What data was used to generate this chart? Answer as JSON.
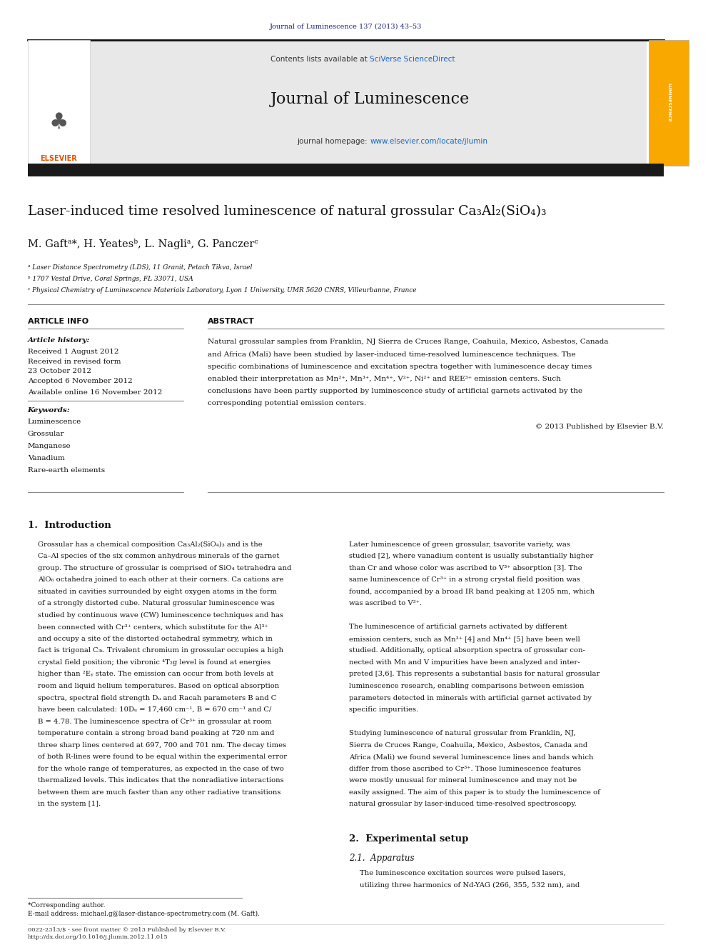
{
  "page_width": 9.92,
  "page_height": 13.23,
  "dpi": 100,
  "background_color": "#ffffff",
  "top_journal_text": "Journal of Luminescence 137 (2013) 43–53",
  "top_journal_color": "#1a237e",
  "header_bg_color": "#e8e8e8",
  "header_journal_name": "Journal of Luminescence",
  "header_contents": "Contents lists available at",
  "header_sciverse": "SciVerse ScienceDirect",
  "header_homepage_url_color": "#1565c0",
  "thick_bar_color": "#1a1a1a",
  "article_title": "Laser-induced time resolved luminescence of natural grossular Ca₃Al₂(SiO₄)₃",
  "authors": "M. Gaftᵃ*, H. Yeatesᵇ, L. Nagliᵃ, G. Panczerᶜ",
  "affil_a": "ᵃ Laser Distance Spectrometry (LDS), 11 Granit, Petach Tikva, Israel",
  "affil_b": "ᵇ 1707 Vestal Drive, Coral Springs, FL 33071, USA",
  "affil_c": "ᶜ Physical Chemistry of Luminescence Materials Laboratory, Lyon 1 University, UMR 5620 CNRS, Villeurbanne, France",
  "article_info_title": "ARTICLE INFO",
  "article_history_title": "Article history:",
  "received": "Received 1 August 2012",
  "revised": "Received in revised form",
  "revised2": "23 October 2012",
  "accepted": "Accepted 6 November 2012",
  "available": "Available online 16 November 2012",
  "keywords_title": "Keywords:",
  "keyword1": "Luminescence",
  "keyword2": "Grossular",
  "keyword3": "Manganese",
  "keyword4": "Vanadium",
  "keyword5": "Rare-earth elements",
  "abstract_title": "ABSTRACT",
  "abstract_text": "Natural grossular samples from Franklin, NJ Sierra de Cruces Range, Coahuila, Mexico, Asbestos, Canada\nand Africa (Mali) have been studied by laser-induced time-resolved luminescence techniques. The\nspecific combinations of luminescence and excitation spectra together with luminescence decay times\nenabled their interpretation as Mn²⁺, Mn³⁺, Mn⁴⁺, V²⁺, Ni²⁺ and REE³⁺ emission centers. Such\nconclusions have been partly supported by luminescence study of artificial garnets activated by the\ncorresponding potential emission centers.",
  "copyright": "© 2013 Published by Elsevier B.V.",
  "section1_title": "1.  Introduction",
  "intro_para1": "Grossular has a chemical composition Ca₃Al₂(SiO₄)₃ and is the\nCa–Al species of the six common anhydrous minerals of the garnet\ngroup. The structure of grossular is comprised of SiO₄ tetrahedra and\nAlO₆ octahedra joined to each other at their corners. Ca cations are\nsituated in cavities surrounded by eight oxygen atoms in the form\nof a strongly distorted cube. Natural grossular luminescence was\nstudied by continuous wave (CW) luminescence techniques and has\nbeen connected with Cr³⁺ centers, which substitute for the Al³⁺\nand occupy a site of the distorted octahedral symmetry, which in\nfact is trigonal C₃ᵢ. Trivalent chromium in grossular occupies a high\ncrystal field position; the vibronic ⁴T₂g level is found at energies\nhigher than ²Eᵧ state. The emission can occur from both levels at\nroom and liquid helium temperatures. Based on optical absorption\nspectra, spectral field strength Dᵤ and Racah parameters B and C\nhave been calculated: 10Dᵤ = 17,460 cm⁻¹, B = 670 cm⁻¹ and C/\nB = 4.78. The luminescence spectra of Cr³⁺ in grossular at room\ntemperature contain a strong broad band peaking at 720 nm and\nthree sharp lines centered at 697, 700 and 701 nm. The decay times\nof both R-lines were found to be equal within the experimental error\nfor the whole range of temperatures, as expected in the case of two\nthermalized levels. This indicates that the nonradiative interactions\nbetween them are much faster than any other radiative transitions\nin the system [1].",
  "intro_para2_right": "Later luminescence of green grossular, tsavorite variety, was\nstudied [2], where vanadium content is usually substantially higher\nthan Cr and whose color was ascribed to V³⁺ absorption [3]. The\nsame luminescence of Cr³⁺ in a strong crystal field position was\nfound, accompanied by a broad IR band peaking at 1205 nm, which\nwas ascribed to V³⁺.\n\nThe luminescence of artificial garnets activated by different\nemission centers, such as Mn³⁺ [4] and Mn⁴⁺ [5] have been well\nstudied. Additionally, optical absorption spectra of grossular con-\nnected with Mn and V impurities have been analyzed and inter-\npreted [3,6]. This represents a substantial basis for natural grossular\nluminescence research, enabling comparisons between emission\nparameters detected in minerals with artificial garnet activated by\nspecific impurities.\n\nStudying luminescence of natural grossular from Franklin, NJ,\nSierra de Cruces Range, Coahuila, Mexico, Asbestos, Canada and\nAfrica (Mali) we found several luminescence lines and bands which\ndiffer from those ascribed to Cr³⁺. Those luminescence features\nwere mostly unusual for mineral luminescence and may not be\neasily assigned. The aim of this paper is to study the luminescence of\nnatural grossular by laser-induced time-resolved spectroscopy.",
  "section2_title": "2.  Experimental setup",
  "section21_title": "2.1.  Apparatus",
  "apparatus_text": "The luminescence excitation sources were pulsed lasers,\nutilizing three harmonics of Nd-YAG (266, 355, 532 nm), and",
  "footer_line1": "0022-2313/$ - see front matter © 2013 Published by Elsevier B.V.",
  "footer_line2": "http://dx.doi.org/10.1016/j.jlumin.2012.11.015",
  "footnote": "*Corresponding author.",
  "footnote_email": "E-mail address: michael.g@laser-distance-spectrometry.com (M. Gaft).",
  "elsevier_logo_color": "#e65100",
  "journal_cover_bg": "#f9a800"
}
